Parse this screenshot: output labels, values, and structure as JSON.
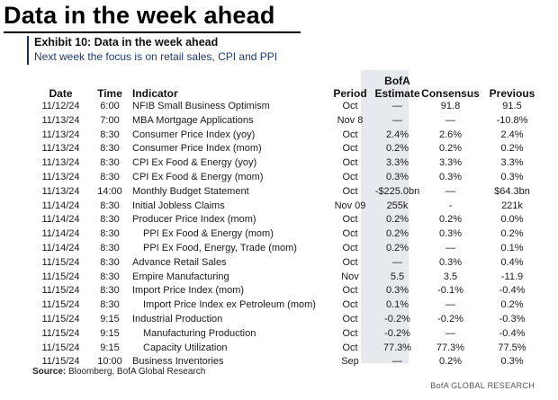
{
  "headline": "Data in the week ahead",
  "exhibit": {
    "title": "Exhibit 10: Data in the week ahead",
    "subtitle": "Next week the focus is on retail sales, CPI and PPI"
  },
  "columns": {
    "date": "Date",
    "time": "Time",
    "indicator": "Indicator",
    "period": "Period",
    "estimate_line1": "BofA",
    "estimate_line2": "Estimate",
    "consensus": "Consensus",
    "previous": "Previous"
  },
  "rows": [
    {
      "date": "11/12/24",
      "time": "6:00",
      "indicator": "NFIB Small Business Optimism",
      "indent": false,
      "period": "Oct",
      "estimate": "—",
      "consensus": "91.8",
      "previous": "91.5"
    },
    {
      "date": "11/13/24",
      "time": "7:00",
      "indicator": "MBA Mortgage Applications",
      "indent": false,
      "period": "Nov 8",
      "estimate": "—",
      "consensus": "—",
      "previous": "-10.8%"
    },
    {
      "date": "11/13/24",
      "time": "8:30",
      "indicator": "Consumer Price Index (yoy)",
      "indent": false,
      "period": "Oct",
      "estimate": "2.4%",
      "consensus": "2.6%",
      "previous": "2.4%"
    },
    {
      "date": "11/13/24",
      "time": "8:30",
      "indicator": "Consumer Price Index (mom)",
      "indent": false,
      "period": "Oct",
      "estimate": "0.2%",
      "consensus": "0.2%",
      "previous": "0.2%"
    },
    {
      "date": "11/13/24",
      "time": "8:30",
      "indicator": "CPI Ex Food & Energy (yoy)",
      "indent": false,
      "period": "Oct",
      "estimate": "3.3%",
      "consensus": "3.3%",
      "previous": "3.3%"
    },
    {
      "date": "11/13/24",
      "time": "8:30",
      "indicator": "CPI Ex Food & Energy (mom)",
      "indent": false,
      "period": "Oct",
      "estimate": "0.3%",
      "consensus": "0.3%",
      "previous": "0.3%"
    },
    {
      "date": "11/13/24",
      "time": "14:00",
      "indicator": "Monthly Budget Statement",
      "indent": false,
      "period": "Oct",
      "estimate": "-$225.0bn",
      "consensus": "—",
      "previous": "$64.3bn"
    },
    {
      "date": "11/14/24",
      "time": "8:30",
      "indicator": "Initial Jobless Claims",
      "indent": false,
      "period": "Nov 09",
      "estimate": "255k",
      "consensus": "-",
      "previous": "221k"
    },
    {
      "date": "11/14/24",
      "time": "8:30",
      "indicator": "Producer Price Index (mom)",
      "indent": false,
      "period": "Oct",
      "estimate": "0.2%",
      "consensus": "0.2%",
      "previous": "0.0%"
    },
    {
      "date": "11/14/24",
      "time": "8:30",
      "indicator": "PPI Ex Food & Energy (mom)",
      "indent": true,
      "period": "Oct",
      "estimate": "0.2%",
      "consensus": "0.3%",
      "previous": "0.2%"
    },
    {
      "date": "11/14/24",
      "time": "8:30",
      "indicator": "PPI Ex Food, Energy, Trade (mom)",
      "indent": true,
      "period": "Oct",
      "estimate": "0.2%",
      "consensus": "—",
      "previous": "0.1%"
    },
    {
      "date": "11/15/24",
      "time": "8:30",
      "indicator": "Advance Retail Sales",
      "indent": false,
      "period": "Oct",
      "estimate": "—",
      "consensus": "0.3%",
      "previous": "0.4%"
    },
    {
      "date": "11/15/24",
      "time": "8:30",
      "indicator": "Empire Manufacturing",
      "indent": false,
      "period": "Nov",
      "estimate": "5.5",
      "consensus": "3.5",
      "previous": "-11.9"
    },
    {
      "date": "11/15/24",
      "time": "8:30",
      "indicator": "Import Price Index (mom)",
      "indent": false,
      "period": "Oct",
      "estimate": "0.3%",
      "consensus": "-0.1%",
      "previous": "-0.4%"
    },
    {
      "date": "11/15/24",
      "time": "8:30",
      "indicator": "Import Price Index ex Petroleum (mom)",
      "indent": true,
      "period": "Oct",
      "estimate": "0.1%",
      "consensus": "—",
      "previous": "0.2%"
    },
    {
      "date": "11/15/24",
      "time": "9:15",
      "indicator": "Industrial Production",
      "indent": false,
      "period": "Oct",
      "estimate": "-0.2%",
      "consensus": "-0.2%",
      "previous": "-0.3%"
    },
    {
      "date": "11/15/24",
      "time": "9:15",
      "indicator": "Manufacturing Production",
      "indent": true,
      "period": "Oct",
      "estimate": "-0.2%",
      "consensus": "—",
      "previous": "-0.4%"
    },
    {
      "date": "11/15/24",
      "time": "9:15",
      "indicator": "Capacity Utilization",
      "indent": true,
      "period": "Oct",
      "estimate": "77.3%",
      "consensus": "77.3%",
      "previous": "77.5%"
    },
    {
      "date": "11/15/24",
      "time": "10:00",
      "indicator": "Business Inventories",
      "indent": false,
      "period": "Sep",
      "estimate": "—",
      "consensus": "0.2%",
      "previous": "0.3%"
    }
  ],
  "source_label": "Source:",
  "source_text": "Bloomberg, BofA Global Research",
  "brand": "BofA GLOBAL RESEARCH",
  "colors": {
    "subtitle": "#1f3a75",
    "estimate_shade": "#e6e9ee",
    "exhibit_rule": "#1c2f5a"
  }
}
